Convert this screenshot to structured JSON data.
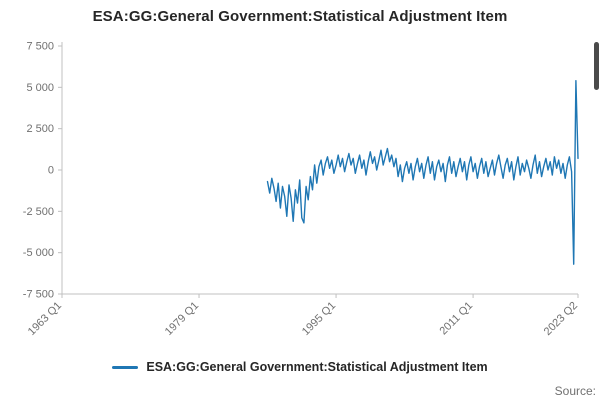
{
  "title": "ESA:GG:General Government:Statistical Adjustment Item",
  "legend": {
    "label": "ESA:GG:General Government:Statistical Adjustment Item"
  },
  "source_label": "Source:",
  "colors": {
    "line": "#1f77b4",
    "axis": "#c0c0c0",
    "tick_text": "#707070",
    "title_text": "#262626"
  },
  "chart_data": {
    "type": "line",
    "title": "ESA:GG:General Government:Statistical Adjustment Item",
    "xlabel": "",
    "ylabel": "",
    "ylim": [
      -7500,
      7500
    ],
    "grid": false,
    "legend_position": "bottom",
    "x_axis_start": "1963 Q1",
    "x_axis_end": "2023 Q2",
    "total_points": 242,
    "y_ticks": [
      {
        "value": 7500,
        "label": "7 500"
      },
      {
        "value": 5000,
        "label": "5 000"
      },
      {
        "value": 2500,
        "label": "2 500"
      },
      {
        "value": 0,
        "label": "0"
      },
      {
        "value": -2500,
        "label": "-2 500"
      },
      {
        "value": -5000,
        "label": "-5 000"
      },
      {
        "value": -7500,
        "label": "-7 500"
      }
    ],
    "x_ticks": [
      {
        "index": 0,
        "label": "1963 Q1"
      },
      {
        "index": 64,
        "label": "1979 Q1"
      },
      {
        "index": 128,
        "label": "1995 Q1"
      },
      {
        "index": 192,
        "label": "2011 Q1"
      },
      {
        "index": 241,
        "label": "2023 Q2"
      }
    ],
    "series": [
      {
        "name": "ESA:GG:General Government:Statistical Adjustment Item",
        "start_label": "1987 Q1",
        "start_index": 96,
        "frequency": "quarterly",
        "values": [
          -700,
          -1400,
          -500,
          -1100,
          -1900,
          -800,
          -2300,
          -1000,
          -1600,
          -2800,
          -900,
          -1700,
          -3100,
          -1200,
          -2000,
          -600,
          -2900,
          -3200,
          -1000,
          -1800,
          -400,
          -1200,
          300,
          -800,
          200,
          600,
          -300,
          400,
          800,
          100,
          600,
          -200,
          300,
          900,
          200,
          700,
          -100,
          500,
          1000,
          300,
          700,
          -200,
          400,
          900,
          100,
          600,
          -300,
          500,
          1100,
          400,
          800,
          0,
          600,
          1200,
          300,
          800,
          1300,
          500,
          900,
          200,
          700,
          -400,
          300,
          -700,
          100,
          500,
          -200,
          400,
          -600,
          200,
          700,
          -100,
          400,
          -500,
          300,
          800,
          -200,
          500,
          -600,
          200,
          600,
          -100,
          400,
          -700,
          300,
          800,
          -200,
          500,
          -400,
          200,
          700,
          -100,
          500,
          -600,
          300,
          800,
          -100,
          400,
          -500,
          200,
          700,
          -200,
          500,
          -400,
          100,
          600,
          -300,
          400,
          900,
          200,
          -500,
          300,
          700,
          -100,
          500,
          -600,
          200,
          800,
          -300,
          400,
          -100,
          600,
          100,
          -500,
          300,
          900,
          -200,
          500,
          -400,
          200,
          700,
          0,
          500,
          -300,
          800,
          100,
          600,
          -200,
          400,
          -500,
          300,
          800,
          -100,
          -5700,
          5400,
          700
        ]
      }
    ]
  }
}
